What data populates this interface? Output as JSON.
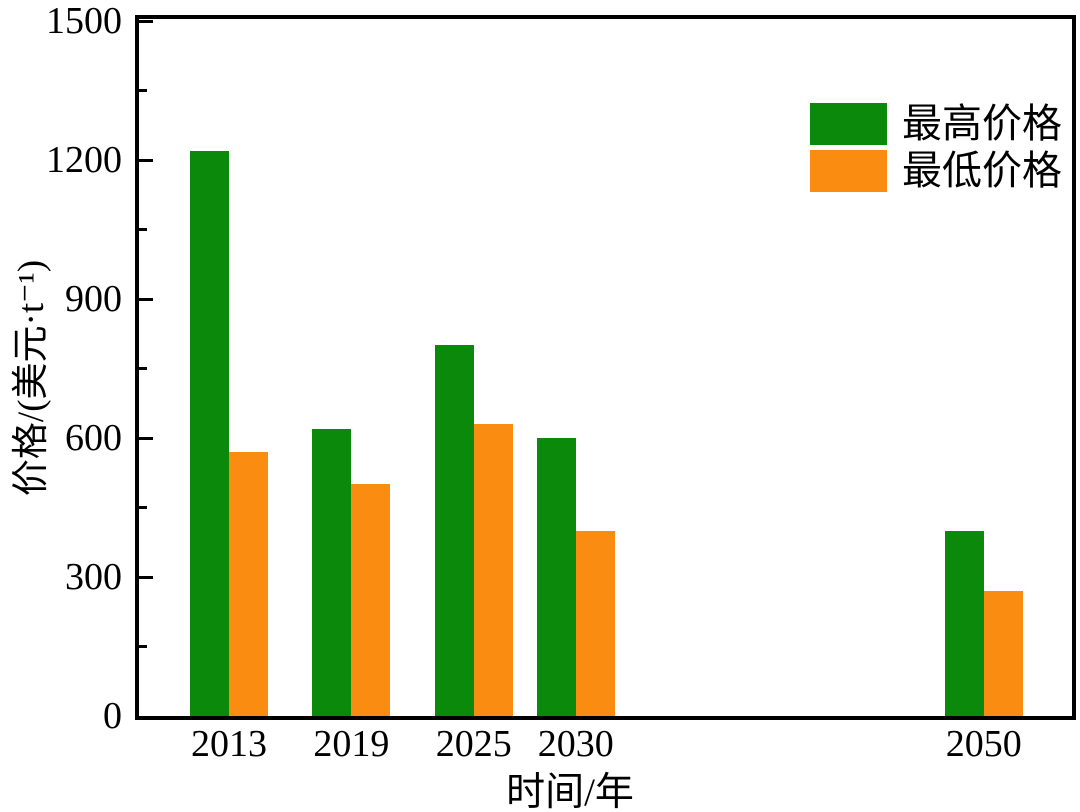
{
  "chart_data": {
    "type": "bar",
    "title": "",
    "xlabel": "时间/年",
    "ylabel": "价格/(美元·t⁻¹)",
    "categories": [
      2013,
      2019,
      2025,
      2030,
      2050
    ],
    "series": [
      {
        "name": "最高价格",
        "color": "#0b890b",
        "values": [
          1220,
          620,
          800,
          600,
          400
        ]
      },
      {
        "name": "最低价格",
        "color": "#fa8c12",
        "values": [
          570,
          500,
          630,
          400,
          270
        ]
      }
    ],
    "ylim": [
      0,
      1500
    ],
    "xlim": [
      2008.5,
      2054.5
    ],
    "y_major_ticks": [
      0,
      300,
      600,
      900,
      1200,
      1500
    ],
    "y_minor_ticks": [
      150,
      450,
      750,
      1050,
      1350
    ],
    "x_tick_labels": [
      "2013",
      "2019",
      "2025",
      "2030",
      "2050"
    ],
    "x_axis_type": "linear",
    "grid": false,
    "legend_position": "top-right"
  },
  "colors": {
    "axis": "#000000",
    "text": "#000000",
    "background": "#ffffff",
    "series_high": "#0b890b",
    "series_low": "#fa8c12"
  }
}
